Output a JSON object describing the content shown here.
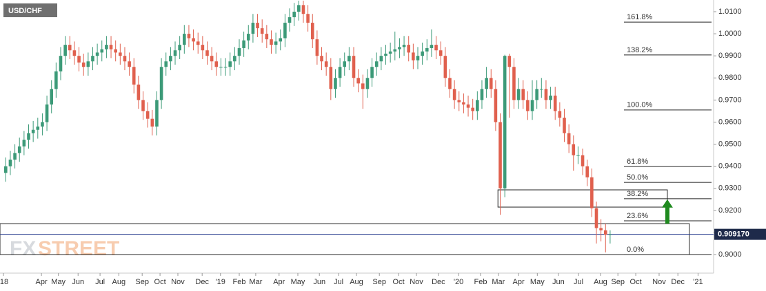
{
  "chart_data": {
    "type": "candlestick",
    "title": "USD/CHF",
    "watermark": [
      "FX",
      "STREET"
    ],
    "up_color": "#3c9a78",
    "down_color": "#e0604e",
    "x": [
      0.5,
      1.5,
      2.5,
      3.5,
      4.5,
      5.5,
      6.5,
      7.5,
      8.5,
      9.5,
      10.5,
      11.5,
      12.5,
      13.5,
      14.5,
      15.5,
      16.5,
      17.5,
      18.5,
      19.5,
      20.5,
      21.5,
      22.5,
      23.5,
      24.5,
      25.5,
      26.5,
      27.5,
      28.5,
      29.5,
      30.5,
      31.5,
      32.5,
      33.5,
      34.5,
      35.5,
      36.5,
      37.5,
      38.5,
      39.5,
      40.5,
      41.5,
      42.5,
      43.5,
      44.5,
      45.5,
      46.5,
      47.5,
      48.5,
      49.5,
      50.5,
      51.5,
      52.5,
      53.5,
      54.5,
      55.5,
      56.5,
      57.5,
      58.5,
      59.5,
      60.5,
      61.5,
      62.5,
      63.5,
      64.5,
      65.5,
      66.5,
      67.5,
      68.5,
      69.5,
      70.5,
      71.5,
      72.5,
      73.5,
      74.5,
      75.5,
      76.5,
      77.5,
      78.5,
      79.5,
      80.5,
      81.5,
      82.5,
      83.5,
      84.5,
      85.5,
      86.5,
      87.5,
      88.5,
      89.5,
      90.5,
      91.5,
      92.5,
      93.5,
      94.5,
      95.5,
      96.5,
      97.5,
      98.5,
      99.5,
      100.5,
      101.5,
      102.5,
      103.5,
      104.5,
      105.5,
      106.5,
      107.5,
      108.5,
      109.5,
      110.5,
      111.5,
      112.5,
      113.5,
      114.5,
      115.5,
      116.5,
      117.5,
      118.5,
      119.5,
      120.5,
      121.5,
      122.5,
      123.5,
      124.5,
      125.5,
      126.5,
      127.5,
      128.5,
      129.5,
      130.5,
      131.5,
      132.5
    ],
    "open": [
      0.937,
      0.94,
      0.943,
      0.946,
      0.949,
      0.952,
      0.955,
      0.9565,
      0.958,
      0.96,
      0.968,
      0.975,
      0.983,
      0.99,
      0.995,
      0.9925,
      0.99,
      0.987,
      0.985,
      0.9875,
      0.99,
      0.9915,
      0.993,
      0.995,
      0.993,
      0.9915,
      0.99,
      0.9875,
      0.985,
      0.977,
      0.97,
      0.965,
      0.9615,
      0.958,
      0.97,
      0.985,
      0.9875,
      0.99,
      0.9925,
      0.995,
      1.0,
      0.998,
      0.9965,
      0.995,
      0.9925,
      0.99,
      0.9875,
      0.985,
      0.985,
      0.985,
      0.9875,
      0.99,
      0.9935,
      0.997,
      1.0,
      1.005,
      1.0025,
      1.0,
      0.9975,
      0.995,
      0.9965,
      0.998,
      1.005,
      1.0075,
      1.01,
      1.013,
      1.009,
      1.005,
      0.9975,
      0.99,
      0.9875,
      0.985,
      0.975,
      0.98,
      0.985,
      0.9875,
      0.99,
      0.98,
      0.9775,
      0.975,
      0.98,
      0.985,
      0.9875,
      0.99,
      0.991,
      0.992,
      0.993,
      0.994,
      0.995,
      0.9915,
      0.988,
      0.99,
      0.992,
      0.9935,
      0.995,
      0.9925,
      0.99,
      0.98,
      0.975,
      0.97,
      0.969,
      0.968,
      0.9665,
      0.965,
      0.97,
      0.975,
      0.98,
      0.975,
      0.96,
      0.93,
      0.99,
      0.985,
      0.97,
      0.975,
      0.97,
      0.965,
      0.97,
      0.975,
      0.975,
      0.97,
      0.972,
      0.965,
      0.962,
      0.955,
      0.95,
      0.945,
      0.945,
      0.94,
      0.935,
      0.921,
      0.912,
      0.911,
      0.909
    ],
    "high": [
      0.944,
      0.947,
      0.95,
      0.953,
      0.956,
      0.959,
      0.9605,
      0.962,
      0.964,
      0.972,
      0.979,
      0.987,
      0.994,
      0.999,
      0.999,
      0.9965,
      0.994,
      0.991,
      0.9915,
      0.994,
      0.9955,
      0.997,
      0.999,
      0.999,
      0.997,
      0.9955,
      0.994,
      0.9915,
      0.989,
      0.981,
      0.974,
      0.969,
      0.9655,
      0.974,
      0.989,
      0.9915,
      0.994,
      0.9965,
      0.999,
      1.004,
      1.004,
      1.002,
      1.0005,
      0.999,
      0.9965,
      0.994,
      0.9915,
      0.989,
      0.989,
      0.9915,
      0.994,
      0.9975,
      1.001,
      1.004,
      1.009,
      1.009,
      1.0065,
      1.004,
      1.0015,
      1.0005,
      1.002,
      1.009,
      1.0115,
      1.014,
      1.015,
      1.015,
      1.013,
      1.009,
      1.0015,
      0.994,
      0.9915,
      0.989,
      0.984,
      0.989,
      0.9915,
      0.994,
      0.994,
      0.984,
      0.9815,
      0.984,
      0.989,
      0.9915,
      0.994,
      0.995,
      0.996,
      1.001,
      0.998,
      0.999,
      0.999,
      0.9955,
      0.994,
      0.996,
      0.9975,
      1.002,
      0.999,
      0.9965,
      0.994,
      0.984,
      0.979,
      0.974,
      0.973,
      0.972,
      0.9705,
      0.974,
      0.979,
      0.985,
      0.984,
      0.979,
      0.964,
      0.9905,
      0.991,
      0.989,
      0.98,
      0.979,
      0.974,
      0.979,
      0.979,
      0.98,
      0.979,
      0.976,
      0.976,
      0.969,
      0.966,
      0.959,
      0.954,
      0.949,
      0.948,
      0.943,
      0.939,
      0.924,
      0.916,
      0.914,
      0.911
    ],
    "low": [
      0.933,
      0.936,
      0.939,
      0.942,
      0.945,
      0.948,
      0.951,
      0.9525,
      0.954,
      0.956,
      0.964,
      0.971,
      0.979,
      0.986,
      0.9885,
      0.986,
      0.983,
      0.981,
      0.981,
      0.9835,
      0.986,
      0.9875,
      0.989,
      0.989,
      0.9875,
      0.986,
      0.9835,
      0.981,
      0.973,
      0.966,
      0.961,
      0.9575,
      0.954,
      0.954,
      0.966,
      0.981,
      0.9835,
      0.986,
      0.9885,
      0.991,
      0.994,
      0.9925,
      0.991,
      0.9885,
      0.986,
      0.9835,
      0.981,
      0.981,
      0.981,
      0.981,
      0.9835,
      0.986,
      0.9895,
      0.993,
      0.996,
      0.9985,
      0.996,
      0.9935,
      0.991,
      0.991,
      0.9925,
      0.994,
      1.001,
      1.0035,
      1.006,
      1.005,
      1.001,
      0.9935,
      0.986,
      0.9835,
      0.981,
      0.97,
      0.971,
      0.976,
      0.981,
      0.9835,
      0.976,
      0.9735,
      0.966,
      0.971,
      0.976,
      0.981,
      0.9835,
      0.986,
      0.987,
      0.988,
      0.989,
      0.99,
      0.9875,
      0.984,
      0.984,
      0.986,
      0.988,
      0.9895,
      0.9885,
      0.986,
      0.976,
      0.971,
      0.966,
      0.965,
      0.964,
      0.9625,
      0.961,
      0.961,
      0.966,
      0.971,
      0.971,
      0.956,
      0.918,
      0.926,
      0.962,
      0.966,
      0.966,
      0.966,
      0.961,
      0.961,
      0.966,
      0.971,
      0.966,
      0.966,
      0.961,
      0.958,
      0.951,
      0.946,
      0.938,
      0.941,
      0.936,
      0.931,
      0.917,
      0.905,
      0.906,
      0.901,
      0.905
    ],
    "close": [
      0.94,
      0.943,
      0.946,
      0.949,
      0.952,
      0.955,
      0.9565,
      0.958,
      0.96,
      0.968,
      0.975,
      0.983,
      0.99,
      0.995,
      0.9925,
      0.99,
      0.987,
      0.985,
      0.9875,
      0.99,
      0.9915,
      0.993,
      0.995,
      0.993,
      0.9915,
      0.99,
      0.9875,
      0.985,
      0.977,
      0.97,
      0.965,
      0.9615,
      0.958,
      0.97,
      0.985,
      0.9875,
      0.99,
      0.9925,
      0.995,
      1.0,
      0.998,
      0.9965,
      0.995,
      0.9925,
      0.99,
      0.9875,
      0.985,
      0.985,
      0.985,
      0.9875,
      0.99,
      0.9935,
      0.997,
      1.0,
      1.005,
      1.0025,
      1.0,
      0.9975,
      0.995,
      0.9965,
      0.998,
      1.005,
      1.0075,
      1.01,
      1.013,
      1.009,
      1.005,
      0.9975,
      0.99,
      0.9875,
      0.985,
      0.975,
      0.98,
      0.985,
      0.9875,
      0.99,
      0.98,
      0.9775,
      0.975,
      0.98,
      0.985,
      0.9875,
      0.99,
      0.991,
      0.992,
      0.993,
      0.994,
      0.995,
      0.9915,
      0.988,
      0.99,
      0.992,
      0.9935,
      0.995,
      0.9925,
      0.99,
      0.98,
      0.975,
      0.97,
      0.969,
      0.968,
      0.9665,
      0.965,
      0.97,
      0.975,
      0.98,
      0.975,
      0.96,
      0.93,
      0.99,
      0.985,
      0.97,
      0.975,
      0.97,
      0.965,
      0.97,
      0.975,
      0.975,
      0.97,
      0.972,
      0.965,
      0.962,
      0.955,
      0.95,
      0.945,
      0.945,
      0.94,
      0.935,
      0.921,
      0.912,
      0.911,
      0.909,
      0.9092
    ],
    "xlim": [
      -0.75,
      155.1
    ],
    "ylim": [
      0.8916,
      1.0153
    ],
    "xticks": [
      {
        "value": 0,
        "label": "'18"
      },
      {
        "value": 8.3,
        "label": "Apr"
      },
      {
        "value": 12,
        "label": "May"
      },
      {
        "value": 16.3,
        "label": "Jun"
      },
      {
        "value": 21.1,
        "label": "Jul"
      },
      {
        "value": 25.2,
        "label": "Aug"
      },
      {
        "value": 30.3,
        "label": "Sep"
      },
      {
        "value": 34.2,
        "label": "Oct"
      },
      {
        "value": 38.1,
        "label": "Nov"
      },
      {
        "value": 43.4,
        "label": "Dec"
      },
      {
        "value": 47.4,
        "label": "'19"
      },
      {
        "value": 51.5,
        "label": "Feb"
      },
      {
        "value": 55.1,
        "label": "Mar"
      },
      {
        "value": 60.2,
        "label": "Apr"
      },
      {
        "value": 64.3,
        "label": "May"
      },
      {
        "value": 69,
        "label": "Jun"
      },
      {
        "value": 73.2,
        "label": "Jul"
      },
      {
        "value": 77.1,
        "label": "Aug"
      },
      {
        "value": 82.1,
        "label": "Sep"
      },
      {
        "value": 86.3,
        "label": "Oct"
      },
      {
        "value": 90.2,
        "label": "Nov"
      },
      {
        "value": 95,
        "label": "Dec"
      },
      {
        "value": 99.4,
        "label": "'20"
      },
      {
        "value": 104.2,
        "label": "Feb"
      },
      {
        "value": 108.1,
        "label": "Mar"
      },
      {
        "value": 112.5,
        "label": "Apr"
      },
      {
        "value": 116.6,
        "label": "May"
      },
      {
        "value": 121.2,
        "label": "Jun"
      },
      {
        "value": 125.6,
        "label": "Jul"
      },
      {
        "value": 130.4,
        "label": "Aug"
      },
      {
        "value": 134.2,
        "label": "Sep"
      },
      {
        "value": 138.1,
        "label": "Oct"
      },
      {
        "value": 143.2,
        "label": "Nov"
      },
      {
        "value": 147.3,
        "label": "Dec"
      },
      {
        "value": 151.7,
        "label": "'21"
      }
    ],
    "yticks": [
      {
        "value": 1.01,
        "label": "1.0100"
      },
      {
        "value": 1.0,
        "label": "1.0000"
      },
      {
        "value": 0.99,
        "label": "0.9900"
      },
      {
        "value": 0.98,
        "label": "0.9800"
      },
      {
        "value": 0.97,
        "label": "0.9700"
      },
      {
        "value": 0.96,
        "label": "0.9600"
      },
      {
        "value": 0.95,
        "label": "0.9500"
      },
      {
        "value": 0.94,
        "label": "0.9400"
      },
      {
        "value": 0.93,
        "label": "0.9300"
      },
      {
        "value": 0.92,
        "label": "0.9200"
      },
      {
        "value": 0.91,
        "label": "0.9100"
      },
      {
        "value": 0.9,
        "label": "0.9000"
      }
    ],
    "fib_levels": [
      {
        "value": 1.0053,
        "label": "161.8%"
      },
      {
        "value": 0.9904,
        "label": "138.2%"
      },
      {
        "value": 0.9655,
        "label": "100.0%"
      },
      {
        "value": 0.9399,
        "label": "61.8%"
      },
      {
        "value": 0.9327,
        "label": "50.0%"
      },
      {
        "value": 0.9253,
        "label": "38.2%"
      },
      {
        "value": 0.9153,
        "label": "23.6%"
      },
      {
        "value": 0.9,
        "label": "0.0%"
      }
    ],
    "zones": [
      {
        "x": [
          108,
          145
        ],
        "y": [
          0.9215,
          0.9293
        ]
      },
      {
        "x": [
          -0.75,
          149.8
        ],
        "y": [
          0.9,
          0.914
        ]
      }
    ],
    "arrow": {
      "x": 145,
      "y": [
        0.914,
        0.925
      ],
      "color": "#1f8a1f"
    },
    "last_price": {
      "value": 0.90917,
      "label": "0.909170"
    }
  }
}
